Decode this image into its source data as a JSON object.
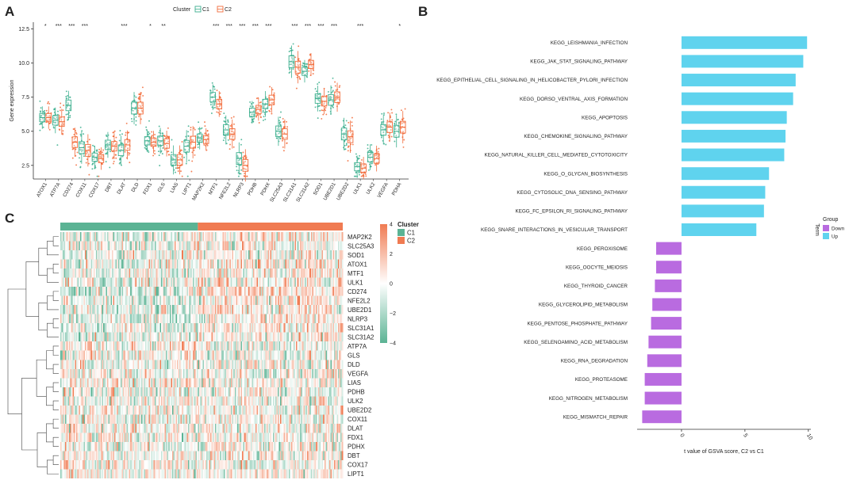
{
  "panels": {
    "a": "A",
    "b": "B",
    "c": "C"
  },
  "colors": {
    "c1": "#3CAF8E",
    "c2": "#F26B3A",
    "up": "#5FD3EE",
    "down": "#B96BE0",
    "heat_low": "#5BB394",
    "heat_mid": "#FFFFFF",
    "heat_high": "#F07B52"
  },
  "chart_data": [
    {
      "panel": "A",
      "type": "box",
      "ylabel": "Gene expression",
      "ylim": [
        1.5,
        13
      ],
      "yticks": [
        2.5,
        5.0,
        7.5,
        10.0,
        12.5
      ],
      "ytick_labels": [
        "2.5",
        "5.0",
        "7.5",
        "10.0",
        "12.5"
      ],
      "legend": {
        "title": "Cluster",
        "entries": [
          "C1",
          "C2"
        ]
      },
      "categories": [
        "ATOX1",
        "ATP7A",
        "CD274",
        "COX11",
        "COX17",
        "DBT",
        "DLAT",
        "DLD",
        "FDX1",
        "GLS",
        "LIAS",
        "LIPT1",
        "MAP2K2",
        "MTF1",
        "NFE2L2",
        "NLRP3",
        "PDHB",
        "PDHX",
        "SLC25A3",
        "SLC31A1",
        "SLC31A2",
        "SOD1",
        "UBE2D1",
        "UBE2D2",
        "ULK1",
        "ULK2",
        "VEGFA",
        "PDHA"
      ],
      "significance": [
        "*",
        "***",
        "***",
        "***",
        "",
        "",
        "***",
        "",
        "*",
        "**",
        "",
        "",
        "",
        "***",
        "***",
        "***",
        "***",
        "***",
        "",
        "***",
        "***",
        "***",
        "***",
        "",
        "***",
        "",
        "",
        "*"
      ],
      "series": [
        {
          "name": "C1",
          "values": [
            6.0,
            5.8,
            6.9,
            3.8,
            3.1,
            4.0,
            3.6,
            6.7,
            4.3,
            4.3,
            2.9,
            3.9,
            4.5,
            7.5,
            5.1,
            3.0,
            6.4,
            7.0,
            5.0,
            10.1,
            9.4,
            7.4,
            7.3,
            4.8,
            2.4,
            3.1,
            5.1,
            5.0
          ]
        },
        {
          "name": "C2",
          "values": [
            6.0,
            5.7,
            4.2,
            3.6,
            3.0,
            3.9,
            4.0,
            6.7,
            4.2,
            4.1,
            2.9,
            4.2,
            4.4,
            7.0,
            4.8,
            2.5,
            6.6,
            7.3,
            4.8,
            9.7,
            9.9,
            7.2,
            7.5,
            4.6,
            2.3,
            3.0,
            5.3,
            5.3
          ]
        }
      ]
    },
    {
      "panel": "B",
      "type": "bar",
      "orientation": "horizontal",
      "xlabel": "t value of GSVA score, C2 vs C1",
      "ylabel": "Term",
      "xlim": [
        -3.5,
        10.2
      ],
      "xticks": [
        0,
        5,
        10
      ],
      "xtick_labels": [
        "0",
        "5",
        "10"
      ],
      "legend": {
        "title": "Group",
        "entries": [
          "Down",
          "Up"
        ]
      },
      "categories": [
        "KEGG_LEISHMANIA_INFECTION",
        "KEGG_JAK_STAT_SIGNALING_PATHWAY",
        "KEGG_EPITHELIAL_CELL_SIGNALING_IN_HELICOBACTER_PYLORI_INFECTION",
        "KEGG_DORSO_VENTRAL_AXIS_FORMATION",
        "KEGG_APOPTOSIS",
        "KEGG_CHEMOKINE_SIGNALING_PATHWAY",
        "KEGG_NATURAL_KILLER_CELL_MEDIATED_CYTOTOXICITY",
        "KEGG_O_GLYCAN_BIOSYNTHESIS",
        "KEGG_CYTOSOLIC_DNA_SENSING_PATHWAY",
        "KEGG_FC_EPSILON_RI_SIGNALING_PATHWAY",
        "KEGG_SNARE_INTERACTIONS_IN_VESICULAR_TRANSPORT",
        "KEGG_PEROXISOME",
        "KEGG_OOCYTE_MEIOSIS",
        "KEGG_THYROID_CANCER",
        "KEGG_GLYCEROLIPID_METABOLISM",
        "KEGG_PENTOSE_PHOSPHATE_PATHWAY",
        "KEGG_SELENOAMINO_ACID_METABOLISM",
        "KEGG_RNA_DEGRADATION",
        "KEGG_PROTEASOME",
        "KEGG_NITROGEN_METABOLISM",
        "KEGG_MISMATCH_REPAIR"
      ],
      "values": [
        9.9,
        9.6,
        9.0,
        8.8,
        8.3,
        8.2,
        8.1,
        6.9,
        6.6,
        6.5,
        5.9,
        -2.0,
        -2.0,
        -2.1,
        -2.3,
        -2.4,
        -2.6,
        -2.7,
        -2.9,
        -2.9,
        -3.1
      ],
      "groups": [
        "Up",
        "Up",
        "Up",
        "Up",
        "Up",
        "Up",
        "Up",
        "Up",
        "Up",
        "Up",
        "Up",
        "Down",
        "Down",
        "Down",
        "Down",
        "Down",
        "Down",
        "Down",
        "Down",
        "Down",
        "Down"
      ]
    },
    {
      "panel": "C",
      "type": "heatmap",
      "annotation": {
        "title": "Cluster",
        "entries": [
          "C1",
          "C2"
        ],
        "c1_fraction": 0.485
      },
      "color_scale": {
        "ticks": [
          4,
          2,
          0,
          -2,
          -4
        ],
        "labels": [
          "4",
          "2",
          "0",
          "−2",
          "−4"
        ]
      },
      "rows": [
        "MAP2K2",
        "SLC25A3",
        "SOD1",
        "ATOX1",
        "MTF1",
        "ULK1",
        "CD274",
        "NFE2L2",
        "UBE2D1",
        "NLRP3",
        "SLC31A1",
        "SLC31A2",
        "ATP7A",
        "GLS",
        "DLD",
        "VEGFA",
        "LIAS",
        "PDHB",
        "ULK2",
        "UBE2D2",
        "COX11",
        "DLAT",
        "FDX1",
        "PDHX",
        "DBT",
        "COX17",
        "LIPT1"
      ],
      "row_bias": [
        0.6,
        0.2,
        0.1,
        0.5,
        0.4,
        0.3,
        0.9,
        0.7,
        0.5,
        0.6,
        0.5,
        0.6,
        -0.4,
        -0.2,
        -0.1,
        0.0,
        -0.1,
        0.0,
        0.1,
        0.1,
        0.0,
        -0.1,
        0.0,
        0.1,
        0.0,
        0.0,
        0.1
      ],
      "n_samples": 230,
      "dendrogram_order": [
        [
          0,
          1
        ],
        [
          2,
          28
        ],
        [
          3,
          4
        ],
        [
          5,
          29
        ],
        [
          6,
          7
        ],
        [
          8,
          9
        ],
        [
          10,
          11
        ],
        [
          12,
          13
        ],
        [
          14,
          15
        ],
        [
          16,
          17
        ],
        [
          18,
          19
        ],
        [
          20,
          21
        ],
        [
          22,
          23
        ],
        [
          24,
          25
        ]
      ]
    }
  ]
}
